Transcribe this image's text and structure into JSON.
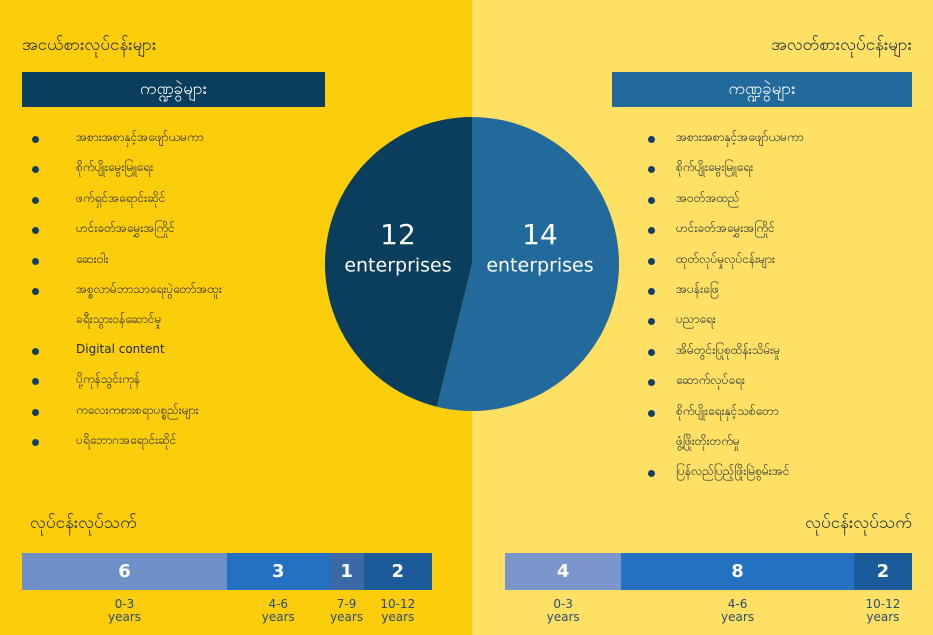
{
  "left": {
    "title": "အငယ်စားလုပ်ငန်းများ",
    "banner": "ကဏ္ဍခွဲများ",
    "banner_color": "#0b3d5c",
    "items": [
      "အစားအစာနှင့်အဖျော်ယမကာ",
      "စိုက်ပျိုးမွေးမြူရေး",
      "ဖက်ရှင်အရောင်းဆိုင်",
      "ဟင်းခတ်အမွှေးအကြိုင်",
      "ဆေးဝါး",
      [
        "အစ္စလာမ်ဘာသာရေးပွဲတော်အထူး",
        "ခရီးသွားဝန်ဆောင်မှု"
      ],
      "Digital content",
      "ပို့ကုန်သွင်းကုန်",
      "ကလေးကစားစရာပစ္စည်းများ",
      "ပရိဘောဂအရောင်းဆိုင်"
    ],
    "age_title": "လုပ်ငန်းလုပ်သက်",
    "ages": {
      "type": "stacked-bar",
      "values": [
        6,
        3,
        1,
        2
      ],
      "labels": [
        "0-3 years",
        "4-6 years",
        "7-9 years",
        "10-12 years"
      ],
      "colors": [
        "#6f8fc8",
        "#2371c0",
        "#3a69a6",
        "#1b5b99"
      ]
    }
  },
  "right": {
    "title": "အလတ်စားလုပ်ငန်းများ",
    "banner": "ကဏ္ဍခွဲများ",
    "banner_color": "#236a9c",
    "items": [
      "အစားအစာနှင့်အဖျော်ယမကာ",
      "စိုက်ပျိုးမွေးမြူရေး",
      "အဝတ်အထည်",
      "ဟင်းခတ်အမွှေးအကြိုင်",
      "ထုတ်လုပ်မှုလုပ်ငန်းများ",
      "အပန်းဖြေ",
      "ပညာရေး",
      "အိမ်တွင်းပြုစုထိန်းသိမ်းမှု",
      "ဆောက်လုပ်ရေး",
      [
        "စိုက်ပျိုးရေးနှင့်သစ်တော",
        "ဖွံ့ဖြိုးတိုးတက်မှု"
      ],
      "ပြန်လည်ပြည့်ဖြိုးမြဲစွမ်းအင်"
    ],
    "age_title": "လုပ်ငန်းလုပ်သက်",
    "ages": {
      "type": "stacked-bar",
      "values": [
        4,
        8,
        2
      ],
      "labels": [
        "0-3 years",
        "4-6 years",
        "10-12 years"
      ],
      "colors": [
        "#7a96cc",
        "#2371c0",
        "#1b5b99"
      ]
    }
  },
  "pie": {
    "type": "pie",
    "values": [
      12,
      14
    ],
    "labels": [
      "enterprises",
      "enterprises"
    ],
    "colors": [
      "#0b3d5c",
      "#236a9c"
    ]
  }
}
